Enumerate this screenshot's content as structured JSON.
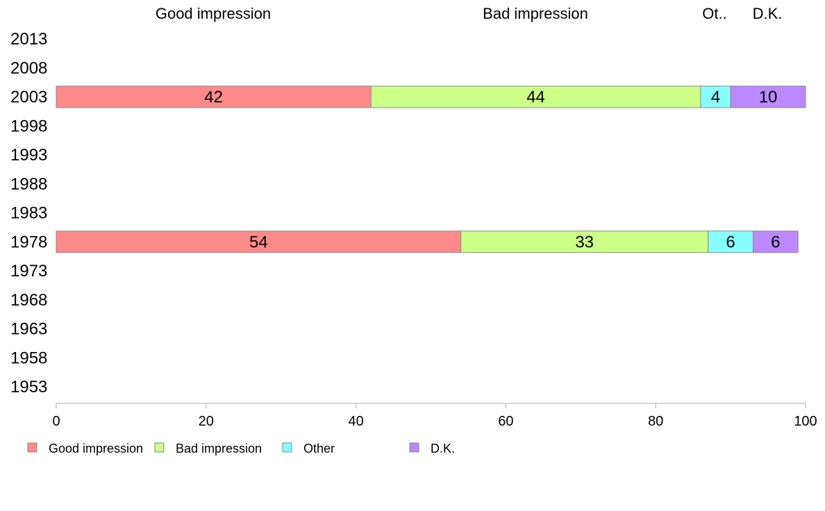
{
  "chart_data": {
    "type": "bar",
    "orientation": "horizontal",
    "stacked": true,
    "column_headers": [
      "Good impression",
      "Bad impression",
      "Ot..",
      "D.K."
    ],
    "categories": [
      "2013",
      "2008",
      "2003",
      "1998",
      "1993",
      "1988",
      "1983",
      "1978",
      "1973",
      "1968",
      "1963",
      "1958",
      "1953"
    ],
    "series": [
      {
        "name": "Good impression",
        "color": "#ff8a8a",
        "values": [
          null,
          null,
          42,
          null,
          null,
          null,
          null,
          54,
          null,
          null,
          null,
          null,
          null
        ]
      },
      {
        "name": "Bad impression",
        "color": "#ccff88",
        "values": [
          null,
          null,
          44,
          null,
          null,
          null,
          null,
          33,
          null,
          null,
          null,
          null,
          null
        ]
      },
      {
        "name": "Other",
        "color": "#88ffff",
        "values": [
          null,
          null,
          4,
          null,
          null,
          null,
          null,
          6,
          null,
          null,
          null,
          null,
          null
        ]
      },
      {
        "name": "D.K.",
        "color": "#bb88ff",
        "values": [
          null,
          null,
          10,
          null,
          null,
          null,
          null,
          6,
          null,
          null,
          null,
          null,
          null
        ]
      }
    ],
    "x_ticks": [
      "0",
      "20",
      "40",
      "60",
      "80",
      "100"
    ],
    "xlim": [
      0,
      100
    ],
    "grid": false,
    "legend_position": "bottom-left"
  }
}
